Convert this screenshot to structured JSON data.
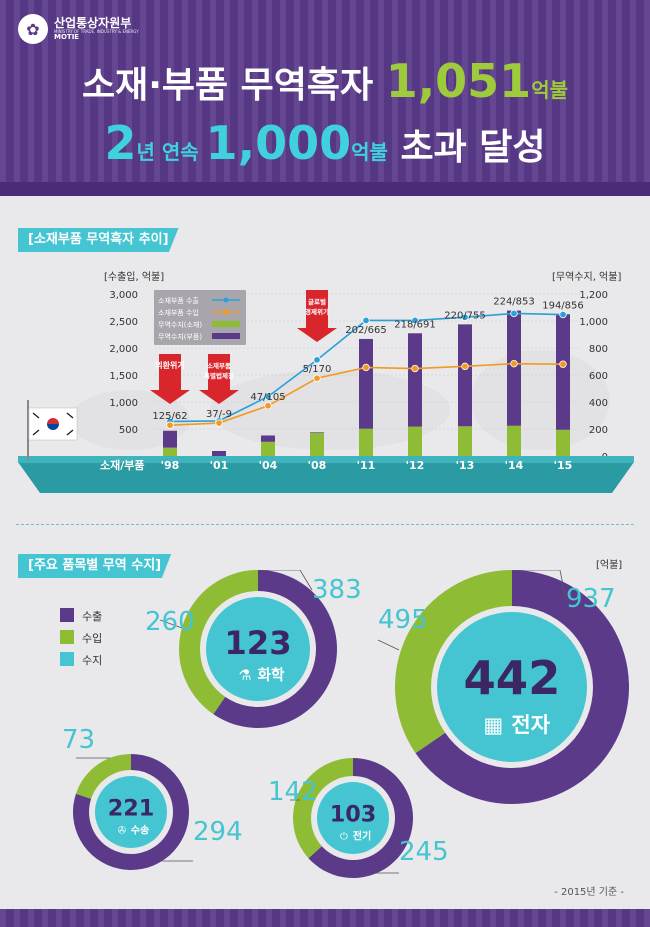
{
  "header": {
    "org_name": "산업통상자원부",
    "org_sub": "MINISTRY OF TRADE, INDUSTRY & ENERGY",
    "org_en": "MOTIE",
    "title1_a": "소재·부품 무역흑자 ",
    "title1_b": "1,051",
    "title1_c": "억불",
    "title2_a": "2",
    "title2_b": "년 연속 ",
    "title2_c": "1,000",
    "title2_d": "억불",
    "title2_e": " 초과 달성"
  },
  "section1_title": "[소재부품 무역흑자 추이]",
  "section2_title": "[주요 품목별 무역 수지]",
  "ship_label": "소재/부품",
  "chart_data": [
    {
      "type": "bar+line",
      "ylabel_left": "[수출입, 억불]",
      "ylabel_right": "[무역수지, 억불]",
      "categories": [
        "'98",
        "'01",
        "'04",
        "'08",
        "'11",
        "'12",
        "'13",
        "'14",
        "'15"
      ],
      "left_ticks": [
        "3,000",
        "2,500",
        "2,000",
        "1,500",
        "1,000",
        "500"
      ],
      "right_ticks": [
        "1,200",
        "1,000",
        "800",
        "600",
        "400",
        "200",
        "0"
      ],
      "ylim_left": [
        0,
        3000
      ],
      "ylim_right": [
        0,
        1200
      ],
      "series": [
        {
          "name": "소재부품 수출",
          "kind": "line",
          "color": "#2aa0d8",
          "values": [
            640,
            650,
            1100,
            1780,
            2510,
            2510,
            2570,
            2640,
            2620
          ]
        },
        {
          "name": "소재부품 수입",
          "kind": "line",
          "color": "#f29a1f",
          "values": [
            570,
            610,
            930,
            1440,
            1640,
            1620,
            1660,
            1710,
            1700
          ]
        },
        {
          "name": "무역수지(소재)",
          "kind": "bar",
          "color": "#8ebd35",
          "values": [
            62,
            -9,
            105,
            170,
            202,
            218,
            220,
            224,
            194
          ]
        },
        {
          "name": "무역수지(부품)",
          "kind": "bar",
          "color": "#5b3a8a",
          "values": [
            125,
            37,
            47,
            5,
            665,
            691,
            755,
            853,
            856
          ]
        }
      ],
      "bar_labels": [
        "125/62",
        "37/-9",
        "47/105",
        "5/170",
        "202/665",
        "218/691",
        "220/755",
        "224/853",
        "194/856"
      ],
      "annotations": [
        {
          "text_lines": [
            "외환위기"
          ],
          "category": "'98"
        },
        {
          "text_lines": [
            "소재부품",
            "특별법제정"
          ],
          "category": "'01"
        },
        {
          "text_lines": [
            "글로벌",
            "경제위기"
          ],
          "category": "'08"
        }
      ]
    },
    {
      "type": "pie",
      "unit": "[억불]",
      "legend": [
        "수출",
        "수입",
        "수지"
      ],
      "legend_colors": [
        "#5b3a8a",
        "#8ebd35",
        "#45c5d1"
      ],
      "items": [
        {
          "label": "화학",
          "export": 383,
          "import": 260,
          "balance": 123
        },
        {
          "label": "전자",
          "export": 937,
          "import": 495,
          "balance": 442
        },
        {
          "label": "수송",
          "export": 294,
          "import": 73,
          "balance": 221
        },
        {
          "label": "전기",
          "export": 245,
          "import": 142,
          "balance": 103
        }
      ]
    }
  ],
  "footnote": "- 2015년 기준 -",
  "colors": {
    "purple": "#5b3a8a",
    "green": "#8ebd35",
    "cyan": "#45c5d1",
    "export_line": "#2aa0d8",
    "import_line": "#f29a1f",
    "arrow": "#d8262c"
  }
}
